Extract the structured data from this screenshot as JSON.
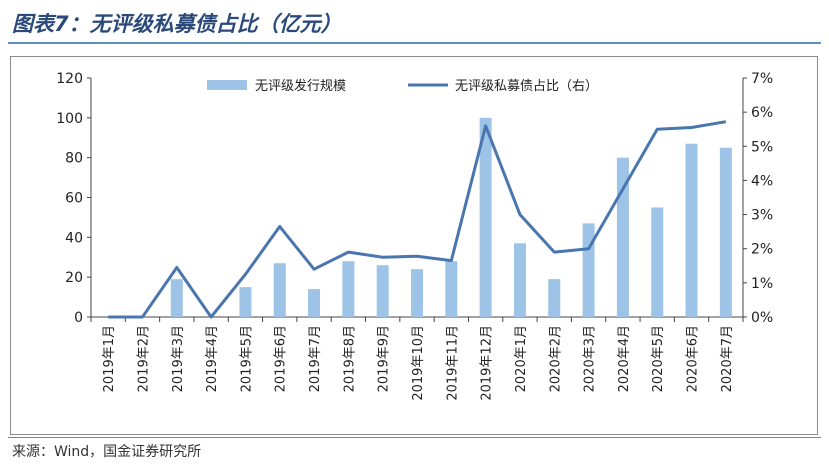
{
  "title": "图表7：无评级私募债占比（亿元）",
  "source": "来源：Wind，国金证券研究所",
  "chart_data": {
    "type": "bar",
    "categories": [
      "2019年1月",
      "2019年2月",
      "2019年3月",
      "2019年4月",
      "2019年5月",
      "2019年6月",
      "2019年7月",
      "2019年8月",
      "2019年9月",
      "2019年10月",
      "2019年11月",
      "2019年12月",
      "2020年1月",
      "2020年2月",
      "2020年3月",
      "2020年4月",
      "2020年5月",
      "2020年6月",
      "2020年7月"
    ],
    "series": [
      {
        "name": "无评级发行规模",
        "kind": "bar",
        "axis": "left",
        "color": "#9dc3e6",
        "values": [
          0,
          0,
          19,
          0,
          15,
          27,
          14,
          28,
          26,
          24,
          28,
          100,
          37,
          19,
          47,
          80,
          55,
          87,
          85
        ]
      },
      {
        "name": "无评级私募债占比（右）",
        "kind": "line",
        "axis": "right",
        "color": "#4a76b0",
        "values": [
          0.0,
          0.0,
          1.45,
          0.0,
          1.25,
          2.65,
          1.4,
          1.9,
          1.75,
          1.78,
          1.65,
          5.6,
          3.0,
          1.9,
          2.0,
          3.75,
          5.5,
          5.55,
          5.72
        ]
      }
    ],
    "y_left": {
      "min": 0,
      "max": 120,
      "ticks": [
        0,
        20,
        40,
        60,
        80,
        100,
        120
      ]
    },
    "y_right": {
      "min": 0,
      "max": 7,
      "ticks": [
        "0%",
        "1%",
        "2%",
        "3%",
        "4%",
        "5%",
        "6%",
        "7%"
      ]
    },
    "legend_position": "top",
    "grid": false
  }
}
